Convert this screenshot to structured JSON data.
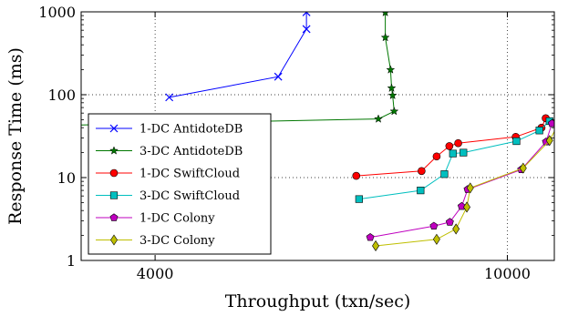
{
  "chart_data": {
    "type": "line",
    "xlabel": "Throughput (txn/sec)",
    "ylabel": "Response Time (ms)",
    "x_scale": "log",
    "y_scale": "log",
    "xlim": [
      3300,
      11300
    ],
    "ylim": [
      1,
      1000
    ],
    "x_ticks": [
      4000,
      10000
    ],
    "x_tick_labels": [
      "4000",
      "10000"
    ],
    "y_ticks": [
      1,
      10,
      100,
      1000
    ],
    "y_tick_labels": [
      "1",
      "10",
      "100",
      "1000"
    ],
    "grid": "dotted",
    "legend_position": "bottom-left",
    "series": [
      {
        "name": "1-DC AntidoteDB",
        "color": "#0000ff",
        "marker": "x",
        "points": [
          [
            4150,
            93
          ],
          [
            5510,
            165
          ],
          [
            5930,
            620
          ],
          [
            5930,
            990
          ]
        ]
      },
      {
        "name": "3-DC AntidoteDB",
        "color": "#007700",
        "marker": "star",
        "points": [
          [
            2600,
            41
          ],
          [
            7150,
            51
          ],
          [
            7450,
            63
          ],
          [
            7420,
            98
          ],
          [
            7400,
            120
          ],
          [
            7380,
            200
          ],
          [
            7280,
            490
          ],
          [
            7280,
            980
          ]
        ]
      },
      {
        "name": "1-DC SwiftCloud",
        "color": "#ff0000",
        "marker": "circle",
        "points": [
          [
            6750,
            10.5
          ],
          [
            8000,
            12
          ],
          [
            8320,
            18
          ],
          [
            8600,
            24
          ],
          [
            8800,
            26
          ],
          [
            10220,
            31
          ],
          [
            10930,
            40
          ],
          [
            11050,
            52
          ]
        ]
      },
      {
        "name": "3-DC SwiftCloud",
        "color": "#00bfbf",
        "marker": "square",
        "points": [
          [
            6800,
            5.5
          ],
          [
            7980,
            7
          ],
          [
            8490,
            11
          ],
          [
            8680,
            19.5
          ],
          [
            8920,
            20
          ],
          [
            10240,
            27.5
          ],
          [
            10870,
            37
          ],
          [
            11160,
            48
          ]
        ]
      },
      {
        "name": "1-DC Colony",
        "color": "#bf00bf",
        "marker": "pentagon",
        "points": [
          [
            7000,
            1.9
          ],
          [
            8260,
            2.6
          ],
          [
            8610,
            2.9
          ],
          [
            8880,
            4.5
          ],
          [
            9020,
            7.2
          ],
          [
            10370,
            12.5
          ],
          [
            11060,
            27
          ],
          [
            11230,
            45
          ]
        ]
      },
      {
        "name": "3-DC Colony",
        "color": "#bfbf00",
        "marker": "diamond",
        "points": [
          [
            7100,
            1.5
          ],
          [
            8320,
            1.8
          ],
          [
            8750,
            2.4
          ],
          [
            9000,
            4.4
          ],
          [
            9080,
            7.5
          ],
          [
            10420,
            13
          ],
          [
            11160,
            28
          ],
          [
            11450,
            47
          ]
        ]
      }
    ]
  }
}
